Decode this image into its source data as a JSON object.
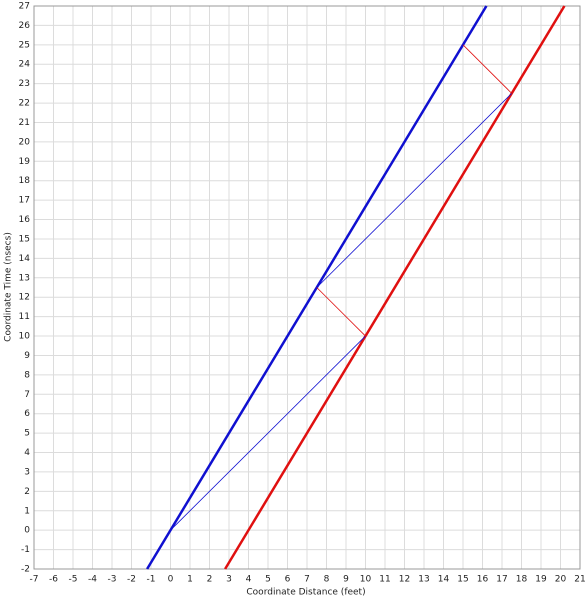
{
  "chart_data": {
    "type": "line",
    "xlabel": "Coordinate Distance (feet)",
    "ylabel": "Coordinate Time (nsecs)",
    "xlim": [
      -7,
      21
    ],
    "ylim": [
      -2,
      27
    ],
    "xticks": [
      -7,
      -6,
      -5,
      -4,
      -3,
      -2,
      -1,
      0,
      1,
      2,
      3,
      4,
      5,
      6,
      7,
      8,
      9,
      10,
      11,
      12,
      13,
      14,
      15,
      16,
      17,
      18,
      19,
      20,
      21
    ],
    "yticks": [
      -2,
      -1,
      0,
      1,
      2,
      3,
      4,
      5,
      6,
      7,
      8,
      9,
      10,
      11,
      12,
      13,
      14,
      15,
      16,
      17,
      18,
      19,
      20,
      21,
      22,
      23,
      24,
      25,
      26,
      27
    ],
    "grid": true,
    "series": [
      {
        "color": "#1010d0",
        "width": 2.5,
        "x": [
          -1.2,
          16.2
        ],
        "values": [
          -2,
          27
        ]
      },
      {
        "color": "#e01010",
        "width": 2.5,
        "x": [
          2.8,
          20.2
        ],
        "values": [
          -2,
          27
        ]
      },
      {
        "color": "#1010d0",
        "width": 0.8,
        "x": [
          0,
          10
        ],
        "values": [
          0,
          10
        ]
      },
      {
        "color": "#1010d0",
        "width": 0.8,
        "x": [
          7.5,
          17.5
        ],
        "values": [
          12.5,
          22.5
        ]
      },
      {
        "color": "#e01010",
        "width": 0.8,
        "x": [
          10,
          7.5
        ],
        "values": [
          10,
          12.5
        ]
      },
      {
        "color": "#e01010",
        "width": 0.8,
        "x": [
          17.5,
          15
        ],
        "values": [
          22.5,
          25
        ]
      }
    ]
  }
}
